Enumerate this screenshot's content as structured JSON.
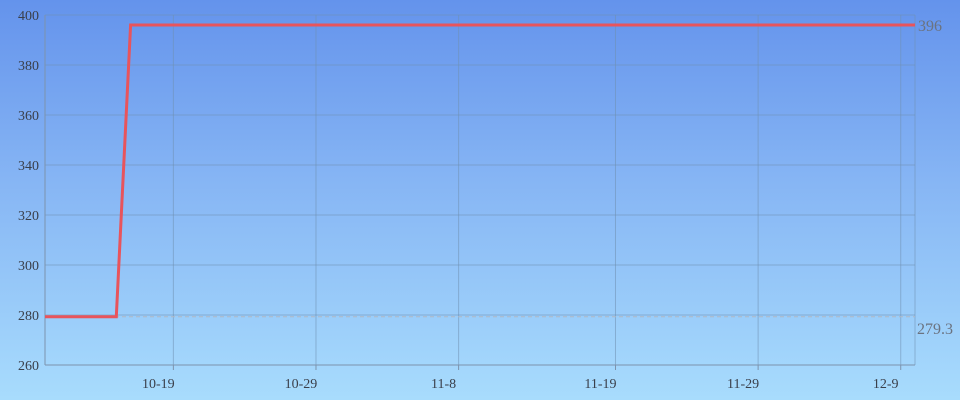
{
  "colors": {
    "line": "#e8545c",
    "grid": "#6f8fb0",
    "axis": "#7c93ad",
    "reference": "#b0b8c4"
  },
  "chart_data": {
    "type": "line",
    "title": "",
    "xlabel": "",
    "ylabel": "",
    "ylim": [
      260,
      400
    ],
    "yticks": [
      260,
      280,
      300,
      320,
      340,
      360,
      380,
      400
    ],
    "x_tick_labels": [
      "10-19",
      "10-29",
      "11-8",
      "11-19",
      "11-29",
      "12-9"
    ],
    "series": [
      {
        "points": [
          {
            "x": "10-10",
            "y": 279.3
          },
          {
            "x": "10-15",
            "y": 279.3
          },
          {
            "x": "10-16",
            "y": 396
          },
          {
            "x": "12-10",
            "y": 396
          }
        ]
      }
    ],
    "reference_line": {
      "value": 279.3,
      "label": "279.3"
    },
    "end_label": "396",
    "grid": true
  }
}
